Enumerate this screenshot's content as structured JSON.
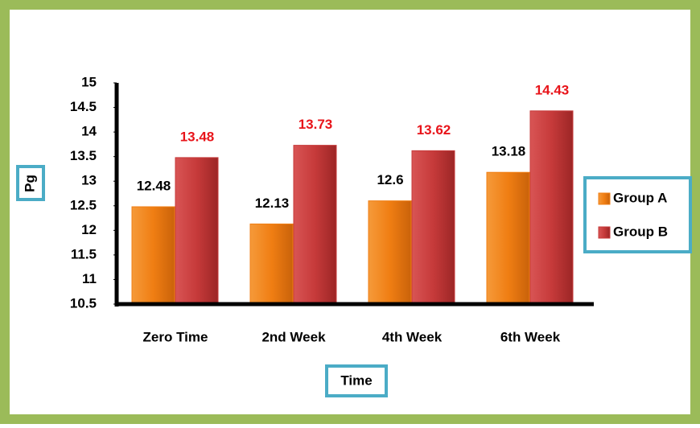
{
  "chart_data": {
    "type": "bar",
    "categories": [
      "Zero Time",
      "2nd Week",
      "4th Week",
      "6th Week"
    ],
    "series": [
      {
        "name": "Group A",
        "color": "#f07e13",
        "values": [
          12.48,
          12.13,
          12.6,
          13.18
        ]
      },
      {
        "name": "Group B",
        "color": "#c63a3a",
        "values": [
          13.48,
          13.73,
          13.62,
          14.43
        ]
      }
    ],
    "ylim": [
      10.5,
      15
    ],
    "yticks": [
      10.5,
      11,
      11.5,
      12,
      12.5,
      13,
      13.5,
      14,
      14.5,
      15
    ],
    "y_label": "Pg",
    "x_label": "Time",
    "legend": "right",
    "grid": false
  }
}
